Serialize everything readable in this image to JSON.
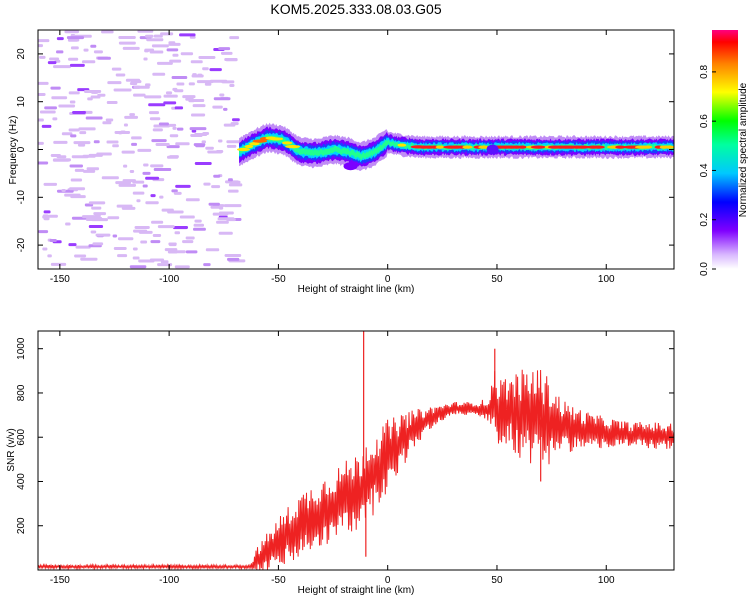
{
  "title": "KOM5.2025.333.08.03.G05",
  "colorbar": {
    "label": "Normalized spectral amplitude",
    "ticks": [
      "0.0",
      "0.2",
      "0.4",
      "0.6",
      "0.8"
    ]
  },
  "chart_data": [
    {
      "type": "heatmap",
      "name": "spectrogram",
      "xlabel": "Height of straight line (km)",
      "ylabel": "Frequency (Hz)",
      "xlim": [
        -160,
        131
      ],
      "ylim": [
        -25,
        25
      ],
      "xticks": [
        -150,
        -100,
        -50,
        0,
        50,
        100
      ],
      "yticks": [
        -20,
        -10,
        0,
        10,
        20
      ],
      "ridge": {
        "x": [
          -68,
          -62,
          -55,
          -48,
          -40,
          -32,
          -25,
          -18,
          -12,
          -6,
          0,
          5,
          15,
          25,
          35,
          45,
          50,
          60,
          80,
          100,
          120,
          131
        ],
        "freq": [
          -0.5,
          1.0,
          2.5,
          2.0,
          -0.5,
          -0.8,
          0.0,
          -0.5,
          -1.5,
          -0.5,
          1.5,
          1.0,
          0.5,
          0.5,
          0.5,
          0.5,
          0.5,
          0.5,
          0.5,
          0.5,
          0.5,
          0.5
        ]
      },
      "noise_region": [
        -160,
        -68
      ]
    },
    {
      "type": "line",
      "name": "snr",
      "xlabel": "Height of straight line (km)",
      "ylabel": "SNR (v/v)",
      "xlim": [
        -160,
        131
      ],
      "ylim": [
        0,
        1080
      ],
      "xticks": [
        -150,
        -100,
        -50,
        0,
        50,
        100
      ],
      "yticks": [
        200,
        400,
        600,
        800,
        1000
      ],
      "color": "#ee2222",
      "series": {
        "x": [
          -160,
          -100,
          -70,
          -63,
          -60,
          -50,
          -40,
          -30,
          -20,
          -12,
          -11,
          -10,
          -5,
          0,
          5,
          10,
          20,
          30,
          40,
          47,
          49,
          50,
          55,
          60,
          65,
          70,
          75,
          80,
          90,
          100,
          110,
          120,
          131
        ],
        "mean": [
          15,
          15,
          15,
          15,
          40,
          120,
          200,
          260,
          320,
          360,
          380,
          400,
          450,
          520,
          560,
          620,
          690,
          730,
          730,
          720,
          780,
          720,
          720,
          700,
          700,
          680,
          670,
          650,
          630,
          620,
          610,
          610,
          600
        ],
        "amplitude": [
          8,
          8,
          8,
          8,
          60,
          120,
          150,
          160,
          170,
          180,
          200,
          200,
          180,
          160,
          140,
          100,
          50,
          30,
          30,
          60,
          200,
          150,
          160,
          200,
          220,
          240,
          180,
          120,
          90,
          70,
          60,
          60,
          60
        ]
      },
      "spikes": [
        {
          "x": -11,
          "y": 1080
        },
        {
          "x": -10,
          "y": 60
        },
        {
          "x": 49,
          "y": 1000
        },
        {
          "x": 70,
          "y": 400
        }
      ]
    }
  ]
}
